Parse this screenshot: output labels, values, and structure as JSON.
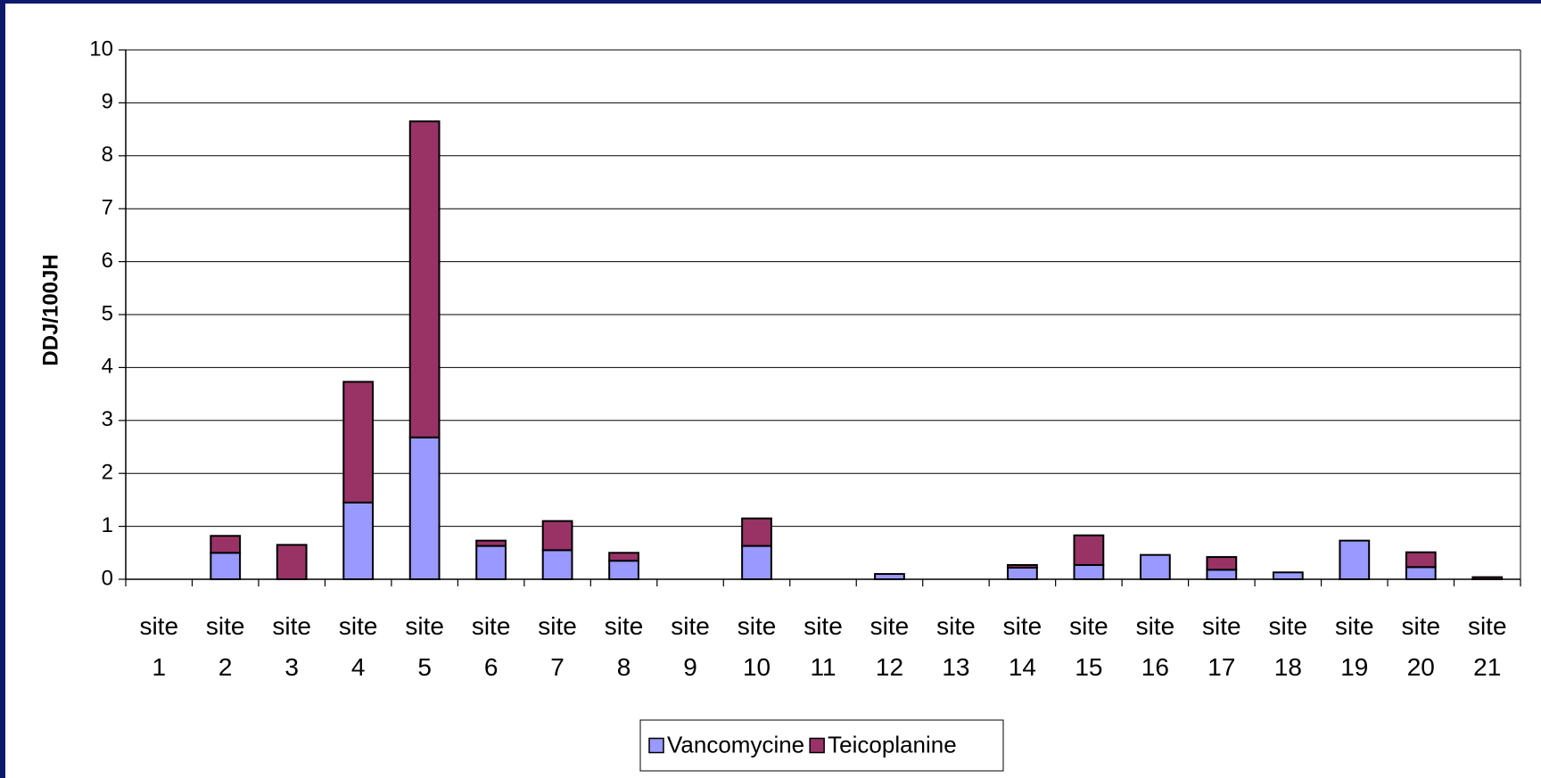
{
  "chart_data": {
    "type": "stacked_bar",
    "y_label": "DDJ/100JH",
    "categories": [
      "site 1",
      "site 2",
      "site 3",
      "site 4",
      "site 5",
      "site 6",
      "site 7",
      "site 8",
      "site 9",
      "site 10",
      "site 11",
      "site 12",
      "site 13",
      "site 14",
      "site 15",
      "site 16",
      "site 17",
      "site 18",
      "site 19",
      "site 20",
      "site 21"
    ],
    "series": [
      {
        "name": "Vancomycine",
        "color": "#9999ff",
        "values": [
          0,
          0.5,
          0,
          1.45,
          2.68,
          0.63,
          0.55,
          0.35,
          0,
          0.63,
          0,
          0.1,
          0,
          0.22,
          0.27,
          0.46,
          0.18,
          0.13,
          0.73,
          0.23,
          0
        ]
      },
      {
        "name": "Teicoplanine",
        "color": "#993366",
        "values": [
          0,
          0.32,
          0.65,
          2.28,
          5.97,
          0.1,
          0.55,
          0.15,
          0,
          0.52,
          0,
          0,
          0,
          0.05,
          0.56,
          0,
          0.24,
          0,
          0,
          0.28,
          0.04
        ]
      }
    ],
    "ylim": [
      0,
      10
    ],
    "yticks": [
      0,
      1,
      2,
      3,
      4,
      5,
      6,
      7,
      8,
      9,
      10
    ],
    "grid": true,
    "legend": "bottom"
  }
}
